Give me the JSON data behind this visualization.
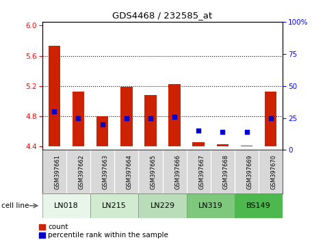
{
  "title": "GDS4468 / 232585_at",
  "samples": [
    "GSM397661",
    "GSM397662",
    "GSM397663",
    "GSM397664",
    "GSM397665",
    "GSM397666",
    "GSM397667",
    "GSM397668",
    "GSM397669",
    "GSM397670"
  ],
  "count_top": [
    5.73,
    5.12,
    4.8,
    5.19,
    5.08,
    5.22,
    4.45,
    4.43,
    4.41,
    5.12
  ],
  "percentile_rank": [
    30,
    25,
    20,
    25,
    25,
    26,
    15,
    14,
    14,
    25
  ],
  "cell_lines": [
    {
      "label": "LN018",
      "start": 0,
      "end": 2,
      "color": "#e8f5e9"
    },
    {
      "label": "LN215",
      "start": 2,
      "end": 4,
      "color": "#d0ebd0"
    },
    {
      "label": "LN229",
      "start": 4,
      "end": 6,
      "color": "#b8ddb8"
    },
    {
      "label": "LN319",
      "start": 6,
      "end": 8,
      "color": "#7dc87d"
    },
    {
      "label": "BS149",
      "start": 8,
      "end": 10,
      "color": "#4db84d"
    }
  ],
  "ylim_left": [
    4.35,
    6.05
  ],
  "ylim_right": [
    -0.5,
    101.5
  ],
  "yticks_left": [
    4.4,
    4.8,
    5.2,
    5.6,
    6.0
  ],
  "yticks_right": [
    0,
    25,
    50,
    75,
    100
  ],
  "bar_color": "#cc2200",
  "dot_color": "#0000cc",
  "bar_bottom": 4.4,
  "grid_lines": [
    4.8,
    5.2,
    5.6
  ],
  "top_label": "6",
  "right_top_label": "100%"
}
